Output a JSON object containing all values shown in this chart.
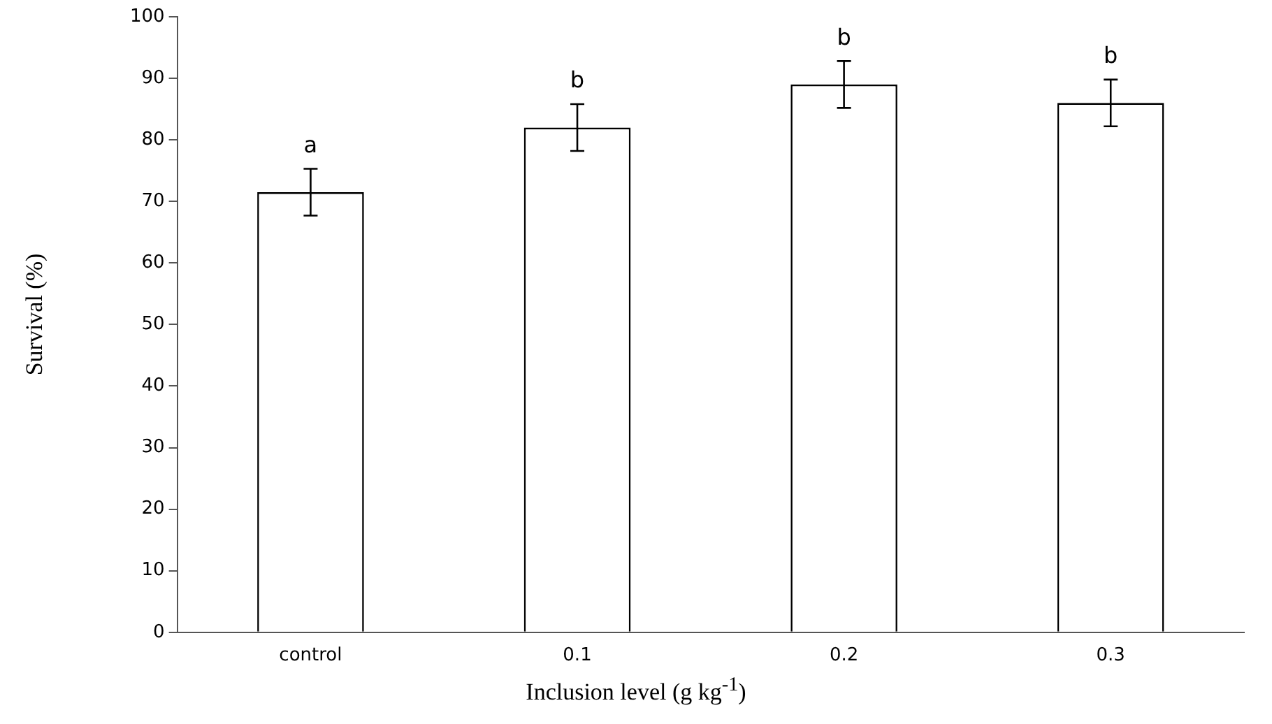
{
  "chart_data": {
    "type": "bar",
    "xlabel": "Inclusion level (g kg$^{-1}$)",
    "ylabel": "Survival  (%)",
    "categories": [
      "control",
      "0.1",
      "0.2",
      "0.3"
    ],
    "values": [
      71.5,
      82,
      89,
      86
    ],
    "errors": [
      3.8,
      3.8,
      3.8,
      3.8
    ],
    "color": "#ffffff",
    "ylim": [
      0,
      100
    ],
    "yticks": [
      0,
      10,
      20,
      30,
      40,
      50,
      60,
      70,
      80,
      90,
      100
    ],
    "grid": false,
    "legend": false,
    "annotations": [
      {
        "text": "a",
        "x": "control",
        "y": 75.3
      },
      {
        "text": "b",
        "x": "0.1",
        "y": 85.8
      },
      {
        "text": "b",
        "x": "0.2",
        "y": 92.8
      },
      {
        "text": "b",
        "x": "0.3",
        "y": 89.8
      }
    ]
  }
}
